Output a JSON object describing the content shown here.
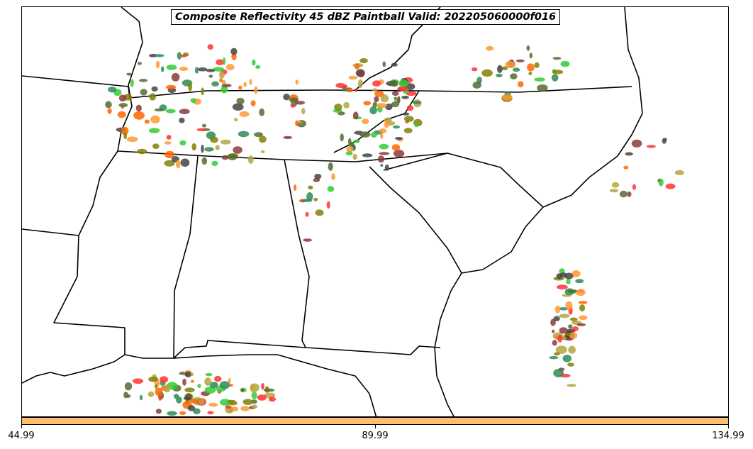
{
  "title": "Composite Reflectivity 45 dBZ Paintball Valid: 202205060000f016",
  "colorbar": {
    "color": "#fdbf6f",
    "ticks": [
      "44.99",
      "89.99",
      "134.99"
    ]
  },
  "palette": [
    "#33cc33",
    "#ff3333",
    "#556b2f",
    "#ff9933",
    "#808000",
    "#444444",
    "#8b3a3a",
    "#b5a642",
    "#2e8b57",
    "#ff6600"
  ],
  "map": {
    "region": "Southeastern United States",
    "boundaries": [
      "state-borders",
      "coastline"
    ]
  }
}
